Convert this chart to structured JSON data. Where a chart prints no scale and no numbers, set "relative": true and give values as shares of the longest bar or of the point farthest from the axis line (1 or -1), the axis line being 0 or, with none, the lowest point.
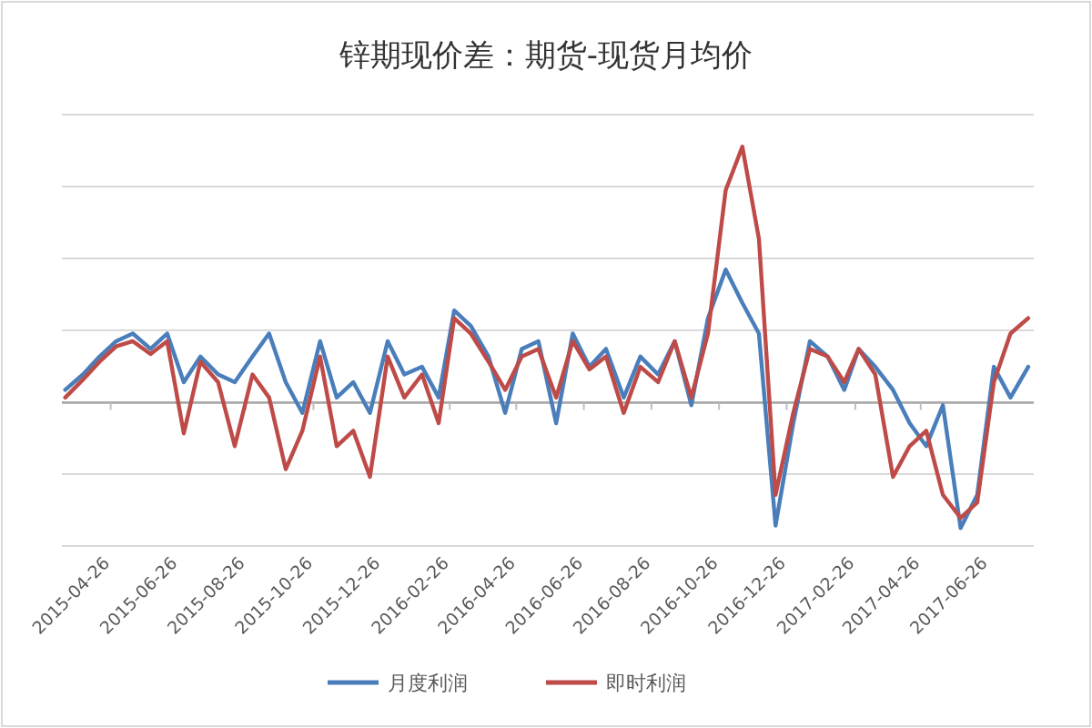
{
  "chart_data": {
    "type": "line",
    "title": "锌期现价差：期货-现货月均价",
    "relative": true,
    "grid": "y",
    "legend": "bottom",
    "x": [
      "2015-03-16",
      "2015-04-01",
      "2015-04-16",
      "2015-05-01",
      "2015-05-16",
      "2015-06-01",
      "2015-06-16",
      "2015-07-01",
      "2015-07-16",
      "2015-08-01",
      "2015-08-16",
      "2015-09-01",
      "2015-09-16",
      "2015-10-01",
      "2015-10-16",
      "2015-11-01",
      "2015-11-16",
      "2015-12-01",
      "2015-12-16",
      "2016-01-01",
      "2016-01-16",
      "2016-02-01",
      "2016-02-16",
      "2016-03-01",
      "2016-03-16",
      "2016-04-01",
      "2016-04-16",
      "2016-05-01",
      "2016-05-16",
      "2016-06-01",
      "2016-06-16",
      "2016-07-01",
      "2016-07-16",
      "2016-08-01",
      "2016-08-16",
      "2016-09-01",
      "2016-09-16",
      "2016-10-01",
      "2016-10-16",
      "2016-11-01",
      "2016-11-16",
      "2016-12-01",
      "2016-12-16",
      "2017-01-01",
      "2017-01-16",
      "2017-02-01",
      "2017-02-16",
      "2017-03-01",
      "2017-03-16",
      "2017-04-01",
      "2017-04-16",
      "2017-05-01",
      "2017-05-16",
      "2017-06-01",
      "2017-06-16",
      "2017-07-01",
      "2017-07-16",
      "2017-08-01"
    ],
    "xlim": [
      "2015-03-13",
      "2017-08-06"
    ],
    "xticks": [
      "2015-04-26",
      "2015-06-26",
      "2015-08-26",
      "2015-10-26",
      "2015-12-26",
      "2016-02-26",
      "2016-04-26",
      "2016-06-26",
      "2016-08-26",
      "2016-10-26",
      "2016-12-26",
      "2017-02-26",
      "2017-04-26",
      "2017-06-26"
    ],
    "series": [
      {
        "name": "月度利润",
        "color": "#4a7ebb",
        "values": [
          0.05,
          0.11,
          0.18,
          0.24,
          0.27,
          0.21,
          0.27,
          0.08,
          0.18,
          0.11,
          0.08,
          0.18,
          0.27,
          0.08,
          -0.04,
          0.24,
          0.02,
          0.08,
          -0.04,
          0.24,
          0.11,
          0.14,
          0.02,
          0.36,
          0.3,
          0.18,
          -0.04,
          0.21,
          0.24,
          -0.08,
          0.27,
          0.14,
          0.21,
          0.02,
          0.18,
          0.11,
          0.24,
          -0.01,
          0.33,
          0.52,
          0.39,
          0.27,
          -0.48,
          -0.08,
          0.24,
          0.18,
          0.05,
          0.21,
          0.14,
          0.05,
          -0.08,
          -0.17,
          -0.01,
          -0.49,
          -0.36,
          0.14,
          0.02,
          0.14
        ]
      },
      {
        "name": "即时利润",
        "color": "#be4b48",
        "values": [
          0.02,
          0.09,
          0.16,
          0.22,
          0.24,
          0.19,
          0.24,
          -0.12,
          0.16,
          0.08,
          -0.17,
          0.11,
          0.02,
          -0.26,
          -0.11,
          0.18,
          -0.17,
          -0.11,
          -0.29,
          0.18,
          0.02,
          0.11,
          -0.08,
          0.33,
          0.27,
          0.16,
          0.05,
          0.18,
          0.21,
          0.02,
          0.24,
          0.13,
          0.18,
          -0.04,
          0.14,
          0.08,
          0.24,
          0.02,
          0.27,
          0.83,
          1.0,
          0.64,
          -0.36,
          -0.04,
          0.21,
          0.18,
          0.08,
          0.21,
          0.11,
          -0.29,
          -0.17,
          -0.11,
          -0.36,
          -0.45,
          -0.39,
          0.08,
          0.27,
          0.33
        ]
      }
    ]
  }
}
